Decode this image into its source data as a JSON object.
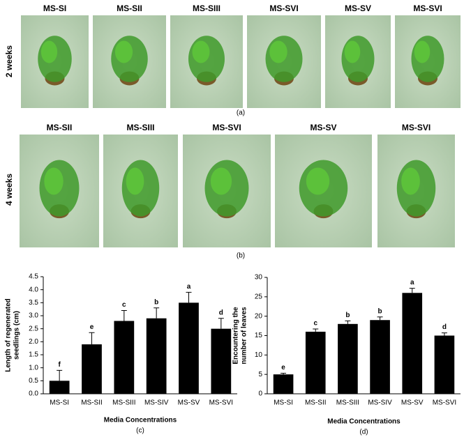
{
  "photos": {
    "row_a": {
      "label": "2 weeks",
      "caption": "(a)",
      "titles": [
        "MS-SI",
        "MS-SII",
        "MS-SIII",
        "MS-SVI",
        "MS-SV",
        "MS-SVI"
      ]
    },
    "row_b": {
      "label": "4 weeks",
      "caption": "(b)",
      "titles": [
        "MS-SII",
        "MS-SIII",
        "MS-SVI",
        "MS-SV",
        "MS-SVI"
      ]
    }
  },
  "chart_data": [
    {
      "type": "bar",
      "caption": "(c)",
      "x_label": "Media Concentrations",
      "y_label": [
        "Length of regenerated",
        "seedlings (cm)"
      ],
      "categories": [
        "MS-SI",
        "MS-SII",
        "MS-SIII",
        "MS-SIV",
        "MS-SV",
        "MS-SVI"
      ],
      "values": [
        0.5,
        1.9,
        2.8,
        2.9,
        3.5,
        2.5
      ],
      "errors": [
        0.4,
        0.45,
        0.4,
        0.4,
        0.4,
        0.4
      ],
      "annotations": [
        "f",
        "e",
        "c",
        "b",
        "a",
        "d"
      ],
      "color": "#000000",
      "ylim": [
        0,
        4.5
      ],
      "yticks": [
        {
          "value": 0,
          "label": "0.0"
        },
        0.5,
        {
          "value": 1,
          "label": "1.0"
        },
        1.5,
        {
          "value": 2,
          "label": "2.0"
        },
        2.5,
        {
          "value": 3,
          "label": "3.0"
        },
        3.5,
        {
          "value": 4,
          "label": "4.0"
        },
        4.5
      ]
    },
    {
      "type": "bar",
      "caption": "(d)",
      "x_label": "Media Concentrations",
      "y_label": [
        "Encountering the",
        "number of leaves"
      ],
      "categories": [
        "MS-SI",
        "MS-SII",
        "MS-SIII",
        "MS-SIV",
        "MS-SV",
        "MS-SVI"
      ],
      "values": [
        5,
        16,
        18,
        19,
        26,
        15
      ],
      "errors": [
        0.3,
        0.7,
        0.8,
        0.8,
        1.2,
        0.7
      ],
      "annotations": [
        "e",
        "c",
        "b",
        "b",
        "a",
        "d"
      ],
      "color": "#000000",
      "ylim": [
        0,
        30
      ],
      "yticks": [
        0,
        5,
        10,
        15,
        20,
        25,
        30
      ]
    }
  ]
}
